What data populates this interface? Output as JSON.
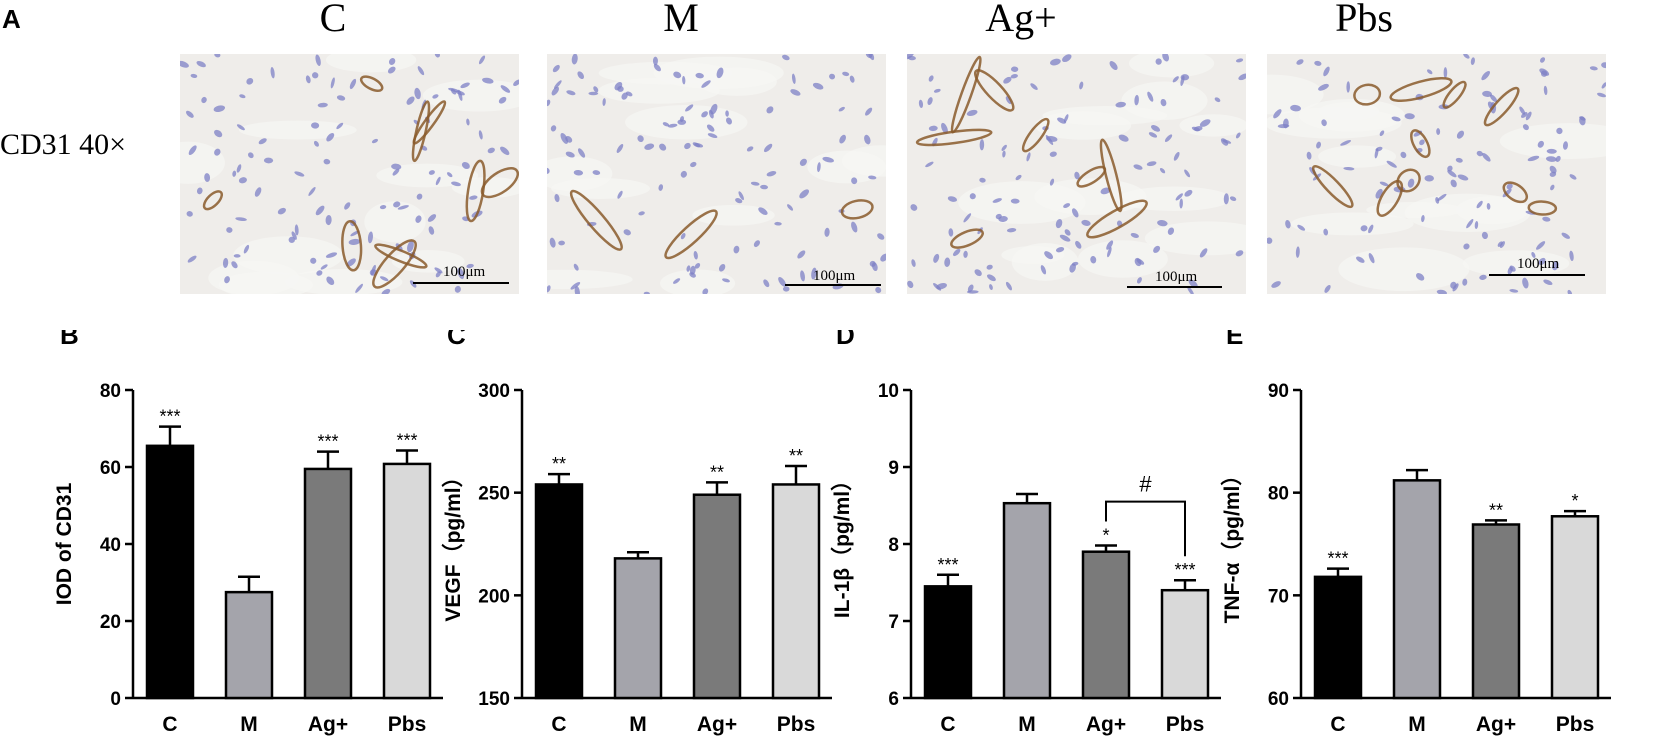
{
  "figure": {
    "letter_A": "A",
    "micro_titles": [
      "C",
      "M",
      "Ag+",
      "Pbs"
    ],
    "row_label": "CD31   40×",
    "scale_bar_label": "100μm"
  },
  "colors": {
    "C": "#000000",
    "M": "#a4a4ab",
    "Ag+": "#7a7a7a",
    "Pbs": "#d9d9d9",
    "stain_background": "#efedea",
    "nuclei": "#7d80c6",
    "vessels": "#8a5a2b"
  },
  "chart_data": [
    {
      "panel": "B",
      "type": "bar",
      "categories": [
        "C",
        "M",
        "Ag+",
        "Pbs"
      ],
      "values": [
        65.5,
        27.5,
        59.5,
        60.8
      ],
      "errors": [
        5.0,
        4.0,
        4.5,
        3.5
      ],
      "significance": [
        "***",
        "",
        "***",
        "***"
      ],
      "ylabel": "IOD of CD31",
      "ylim": [
        0,
        80
      ],
      "yticks": [
        0,
        20,
        40,
        60,
        80
      ]
    },
    {
      "panel": "C",
      "type": "bar",
      "categories": [
        "C",
        "M",
        "Ag+",
        "Pbs"
      ],
      "values": [
        254,
        218,
        249,
        254
      ],
      "errors": [
        5,
        3,
        6,
        9
      ],
      "significance": [
        "**",
        "",
        "**",
        "**"
      ],
      "ylabel": "VEGF（pg/ml）",
      "ylim": [
        150,
        300
      ],
      "yticks": [
        150,
        200,
        250,
        300
      ]
    },
    {
      "panel": "D",
      "type": "bar",
      "categories": [
        "C",
        "M",
        "Ag+",
        "Pbs"
      ],
      "values": [
        7.45,
        8.53,
        7.9,
        7.4
      ],
      "errors": [
        0.15,
        0.12,
        0.08,
        0.13
      ],
      "significance": [
        "***",
        "",
        "*",
        "***"
      ],
      "bracket": {
        "from": "Ag+",
        "to": "Pbs",
        "label": "#",
        "y": 8.55
      },
      "ylabel": "IL-1β（pg/ml）",
      "ylim": [
        6,
        10
      ],
      "yticks": [
        6,
        7,
        8,
        9,
        10
      ]
    },
    {
      "panel": "E",
      "type": "bar",
      "categories": [
        "C",
        "M",
        "Ag+",
        "Pbs"
      ],
      "values": [
        71.8,
        81.2,
        76.9,
        77.7
      ],
      "errors": [
        0.8,
        1.0,
        0.4,
        0.5
      ],
      "significance": [
        "***",
        "",
        "**",
        "*"
      ],
      "ylabel": "TNF-α（pg/ml）",
      "ylim": [
        60,
        90
      ],
      "yticks": [
        60,
        70,
        80,
        90
      ]
    }
  ]
}
